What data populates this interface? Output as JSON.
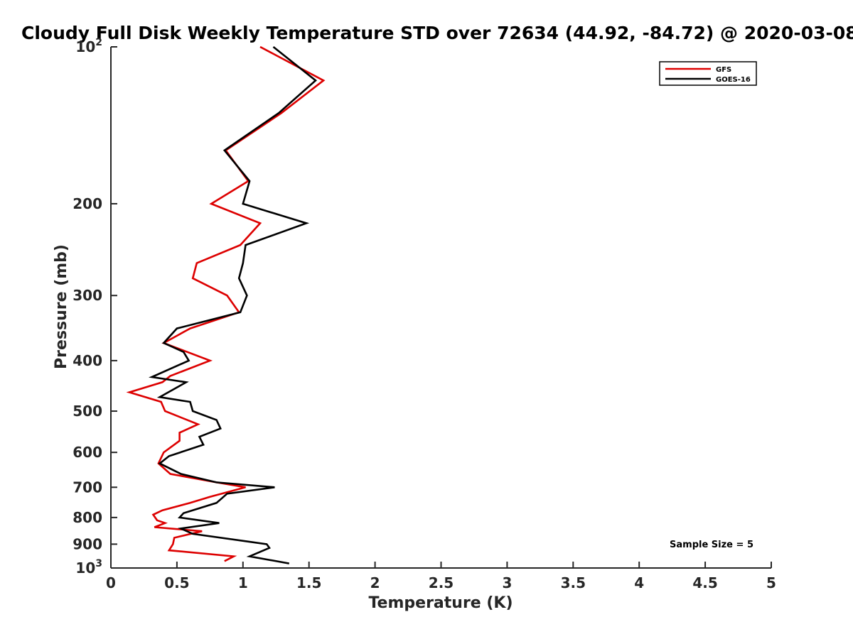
{
  "chart_data": {
    "type": "line",
    "title": "Cloudy Full Disk Weekly Temperature STD over 72634 (44.92, -84.72) @ 2020-03-08",
    "xlabel": "Temperature (K)",
    "ylabel": "Pressure (mb)",
    "xlim": [
      0,
      5
    ],
    "ylim": [
      100,
      1000
    ],
    "y_scale": "log",
    "y_reversed": true,
    "x_ticks": [
      0,
      0.5,
      1,
      1.5,
      2,
      2.5,
      3,
      3.5,
      4,
      4.5,
      5
    ],
    "x_tick_labels": [
      "0",
      "0.5",
      "1",
      "1.5",
      "2",
      "2.5",
      "3",
      "3.5",
      "4",
      "4.5",
      "5"
    ],
    "y_ticks": [
      200,
      300,
      400,
      500,
      600,
      700,
      800,
      900
    ],
    "y_tick_labels": [
      "200",
      "300",
      "400",
      "500",
      "600",
      "700",
      "800",
      "900"
    ],
    "y_extreme_labels": {
      "top": {
        "value": 100,
        "base": "10",
        "exp": "2"
      },
      "bottom": {
        "value": 1000,
        "base": "10",
        "exp": "3"
      }
    },
    "grid": false,
    "legend_position": "top-right",
    "annotation": "Sample Size = 5",
    "series": [
      {
        "name": "GFS",
        "color": "#dd0000",
        "points": [
          [
            1.13,
            100
          ],
          [
            1.61,
            116
          ],
          [
            1.29,
            134
          ],
          [
            0.87,
            158
          ],
          [
            1.04,
            181
          ],
          [
            0.76,
            200
          ],
          [
            1.13,
            218
          ],
          [
            0.98,
            240
          ],
          [
            0.65,
            260
          ],
          [
            0.62,
            278
          ],
          [
            0.88,
            300
          ],
          [
            0.97,
            323
          ],
          [
            0.6,
            347
          ],
          [
            0.4,
            370
          ],
          [
            0.75,
            400
          ],
          [
            0.45,
            428
          ],
          [
            0.39,
            440
          ],
          [
            0.14,
            460
          ],
          [
            0.38,
            480
          ],
          [
            0.41,
            500
          ],
          [
            0.66,
            530
          ],
          [
            0.52,
            550
          ],
          [
            0.52,
            570
          ],
          [
            0.4,
            600
          ],
          [
            0.36,
            630
          ],
          [
            0.45,
            660
          ],
          [
            0.8,
            685
          ],
          [
            1.02,
            700
          ],
          [
            0.75,
            730
          ],
          [
            0.6,
            750
          ],
          [
            0.39,
            775
          ],
          [
            0.32,
            790
          ],
          [
            0.35,
            810
          ],
          [
            0.41,
            820
          ],
          [
            0.33,
            835
          ],
          [
            0.69,
            850
          ],
          [
            0.48,
            875
          ],
          [
            0.47,
            900
          ],
          [
            0.44,
            925
          ],
          [
            0.93,
            950
          ],
          [
            0.86,
            970
          ]
        ]
      },
      {
        "name": "GOES-16",
        "color": "#000000",
        "points": [
          [
            1.23,
            100
          ],
          [
            1.55,
            116
          ],
          [
            1.27,
            134
          ],
          [
            0.86,
            158
          ],
          [
            1.05,
            181
          ],
          [
            1.0,
            200
          ],
          [
            1.48,
            218
          ],
          [
            1.02,
            240
          ],
          [
            1.0,
            260
          ],
          [
            0.97,
            278
          ],
          [
            1.03,
            300
          ],
          [
            0.98,
            323
          ],
          [
            0.5,
            347
          ],
          [
            0.4,
            370
          ],
          [
            0.55,
            385
          ],
          [
            0.59,
            400
          ],
          [
            0.31,
            430
          ],
          [
            0.57,
            440
          ],
          [
            0.37,
            470
          ],
          [
            0.6,
            480
          ],
          [
            0.62,
            500
          ],
          [
            0.8,
            520
          ],
          [
            0.83,
            540
          ],
          [
            0.67,
            560
          ],
          [
            0.7,
            580
          ],
          [
            0.44,
            610
          ],
          [
            0.37,
            630
          ],
          [
            0.53,
            660
          ],
          [
            0.8,
            685
          ],
          [
            1.24,
            700
          ],
          [
            0.88,
            720
          ],
          [
            0.8,
            750
          ],
          [
            0.55,
            785
          ],
          [
            0.52,
            800
          ],
          [
            0.82,
            820
          ],
          [
            0.53,
            840
          ],
          [
            0.62,
            860
          ],
          [
            1.18,
            900
          ],
          [
            1.2,
            915
          ],
          [
            1.05,
            950
          ],
          [
            1.35,
            980
          ]
        ]
      }
    ]
  }
}
